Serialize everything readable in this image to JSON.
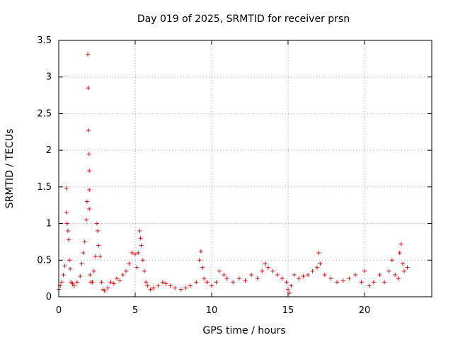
{
  "chart_data": {
    "type": "scatter",
    "title": "Day 019 of 2025, SRMTID for receiver prsn",
    "xlabel": "GPS time / hours",
    "ylabel": "SRMTID / TECUs",
    "xlim": [
      0,
      24.4
    ],
    "ylim": [
      0,
      3.5
    ],
    "xticks": [
      0,
      5,
      10,
      15,
      20
    ],
    "xtick_labels": [
      "0",
      "5",
      "10",
      "15",
      "20"
    ],
    "yticks": [
      0,
      0.5,
      1,
      1.5,
      2,
      2.5,
      3,
      3.5
    ],
    "ytick_labels": [
      "0",
      "0.5",
      "1",
      "1.5",
      "2",
      "2.5",
      "3",
      "3.5"
    ],
    "grid": true,
    "marker": "+",
    "color": "#e01010",
    "series": [
      {
        "name": "SRMTID",
        "x": [
          0.0,
          0.1,
          0.2,
          0.3,
          0.4,
          0.5,
          0.5,
          0.55,
          0.6,
          0.65,
          0.7,
          0.75,
          0.8,
          0.9,
          1.0,
          1.2,
          1.4,
          1.5,
          1.6,
          1.7,
          1.8,
          1.85,
          1.9,
          1.92,
          1.95,
          1.98,
          2.0,
          2.0,
          2.0,
          2.05,
          2.1,
          2.2,
          2.3,
          2.4,
          2.5,
          2.55,
          2.6,
          2.7,
          2.8,
          2.9,
          3.0,
          3.2,
          3.4,
          3.6,
          3.8,
          4.0,
          4.2,
          4.4,
          4.6,
          4.8,
          5.0,
          5.1,
          5.2,
          5.3,
          5.35,
          5.4,
          5.5,
          5.6,
          5.7,
          5.8,
          6.0,
          6.2,
          6.5,
          6.8,
          7.0,
          7.3,
          7.6,
          8.0,
          8.3,
          8.6,
          9.0,
          9.2,
          9.3,
          9.4,
          9.5,
          9.7,
          10.0,
          10.3,
          10.5,
          10.8,
          11.0,
          11.4,
          11.8,
          12.2,
          12.6,
          13.0,
          13.3,
          13.5,
          13.7,
          14.0,
          14.3,
          14.6,
          14.9,
          15.0,
          15.1,
          15.2,
          15.4,
          15.7,
          16.0,
          16.3,
          16.6,
          16.9,
          17.0,
          17.1,
          17.4,
          17.8,
          18.2,
          18.6,
          19.0,
          19.4,
          19.8,
          20.0,
          20.3,
          20.6,
          21.0,
          21.3,
          21.6,
          21.8,
          22.0,
          22.2,
          22.3,
          22.4,
          22.5,
          22.6,
          22.8
        ],
        "y": [
          0.1,
          0.15,
          0.2,
          0.3,
          0.42,
          1.48,
          1.15,
          1.0,
          0.9,
          0.78,
          0.5,
          0.38,
          0.2,
          0.18,
          0.15,
          0.2,
          0.28,
          0.45,
          0.6,
          0.75,
          1.05,
          1.3,
          3.31,
          2.85,
          2.27,
          1.95,
          1.72,
          1.46,
          1.2,
          0.3,
          0.2,
          0.2,
          0.35,
          0.55,
          1.0,
          0.9,
          0.7,
          0.55,
          0.2,
          0.1,
          0.08,
          0.12,
          0.2,
          0.18,
          0.25,
          0.22,
          0.3,
          0.35,
          0.45,
          0.6,
          0.58,
          0.4,
          0.6,
          0.9,
          0.8,
          0.7,
          0.5,
          0.35,
          0.2,
          0.15,
          0.1,
          0.12,
          0.15,
          0.2,
          0.18,
          0.15,
          0.12,
          0.1,
          0.12,
          0.15,
          0.2,
          0.5,
          0.62,
          0.4,
          0.25,
          0.2,
          0.15,
          0.2,
          0.35,
          0.3,
          0.25,
          0.2,
          0.25,
          0.22,
          0.3,
          0.25,
          0.35,
          0.45,
          0.4,
          0.35,
          0.3,
          0.25,
          0.2,
          0.1,
          0.05,
          0.15,
          0.3,
          0.25,
          0.28,
          0.3,
          0.35,
          0.4,
          0.6,
          0.45,
          0.3,
          0.25,
          0.2,
          0.22,
          0.25,
          0.3,
          0.2,
          0.35,
          0.15,
          0.2,
          0.3,
          0.2,
          0.35,
          0.5,
          0.3,
          0.25,
          0.6,
          0.72,
          0.45,
          0.35,
          0.4
        ]
      }
    ]
  }
}
